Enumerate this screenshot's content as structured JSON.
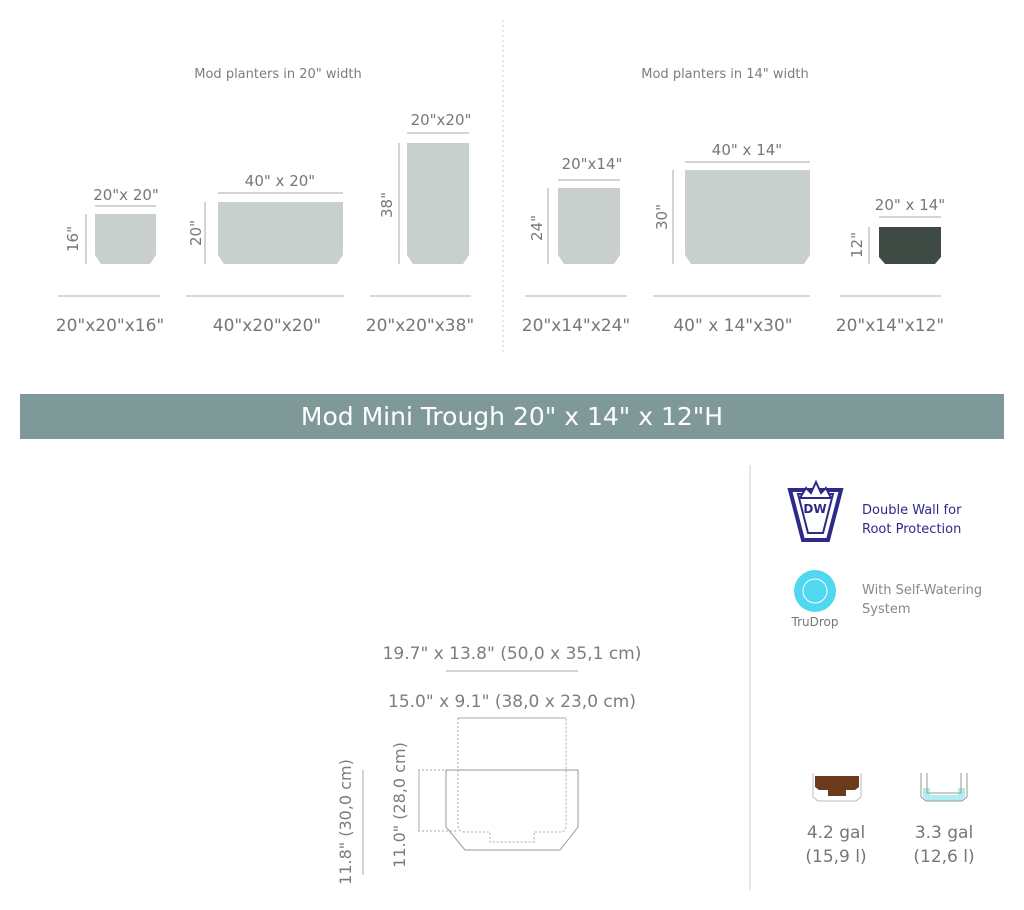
{
  "sections": [
    {
      "title": "Mod planters in 20\" width",
      "planters": [
        {
          "top": "20\"x 20\"",
          "height": "16\"",
          "label": "20\"x20\"x16\""
        },
        {
          "top": "40\" x 20\"",
          "height": "20\"",
          "label": "40\"x20\"x20\""
        },
        {
          "top": "20\"x20\"",
          "height": "38\"",
          "label": "20\"x20\"x38\""
        }
      ]
    },
    {
      "title": "Mod planters in 14\" width",
      "planters": [
        {
          "top": "20\"x14\"",
          "height": "24\"",
          "label": "20\"x14\"x24\""
        },
        {
          "top": "40\" x 14\"",
          "height": "30\"",
          "label": "40\" x 14\"x30\""
        },
        {
          "top": "20\" x 14\"",
          "height": "12\"",
          "label": "20\"x14\"x12\""
        }
      ]
    }
  ],
  "banner": {
    "title": "Mod Mini Trough 20\" x 14\" x 12\"H",
    "color": "#7f9898"
  },
  "drawing": {
    "outer": "19.7\" x 13.8\" (50,0 x 35,1 cm)",
    "inner": "15.0\" x 9.1\" (38,0 x 23,0 cm)",
    "outer_height": "11.8\" (30,0 cm)",
    "inner_height": "11.0\" (28,0 cm)"
  },
  "features": [
    {
      "icon": "double-wall-icon",
      "logo_text": "DW",
      "text1": "Double Wall for",
      "text2": "Root Protection",
      "color": "#2d2a8a"
    },
    {
      "icon": "trudrop-icon",
      "logo_text": "TruDrop",
      "text1": "With Self-Watering",
      "text2": "System",
      "color": "#4fd8ef"
    }
  ],
  "capacity": [
    {
      "icon": "soil-volume-icon",
      "gal": "4.2 gal",
      "liters": "(15,9 l)",
      "color": "#6b3a1a"
    },
    {
      "icon": "water-reservoir-icon",
      "gal": "3.3 gal",
      "liters": "(12,6 l)",
      "color": "#aeeef2"
    }
  ],
  "colors": {
    "planter_grey": "#c9cfcd",
    "planter_dark": "#3e4a44"
  }
}
